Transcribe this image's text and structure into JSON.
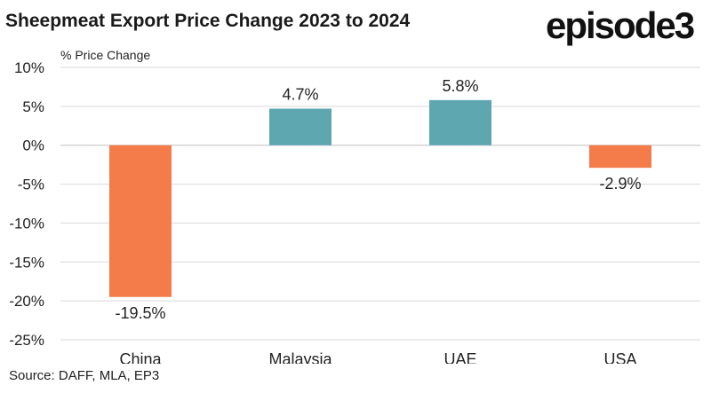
{
  "brand": {
    "logo_text": "episode3"
  },
  "source": "Source: DAFF, MLA, EP3",
  "colors": {
    "positive": "#5ea7b0",
    "negative": "#f47c4a",
    "grid": "#d9d9d9",
    "axis": "#bfbfbf"
  },
  "chart_data": {
    "type": "bar",
    "title": "Sheepmeat Export Price Change 2023 to 2024",
    "ylabel": "% Price Change",
    "xlabel": "",
    "categories": [
      "China",
      "Malaysia",
      "UAE",
      "USA"
    ],
    "values": [
      -19.5,
      4.7,
      5.8,
      -2.9
    ],
    "data_labels": [
      "-19.5%",
      "4.7%",
      "5.8%",
      "-2.9%"
    ],
    "ylim": [
      -25,
      10
    ],
    "yticks": [
      10,
      5,
      0,
      -5,
      -10,
      -15,
      -20,
      -25
    ],
    "ytick_labels": [
      "10%",
      "5%",
      "0%",
      "-5%",
      "-10%",
      "-15%",
      "-20%",
      "-25%"
    ],
    "grid": true,
    "legend": "none"
  }
}
